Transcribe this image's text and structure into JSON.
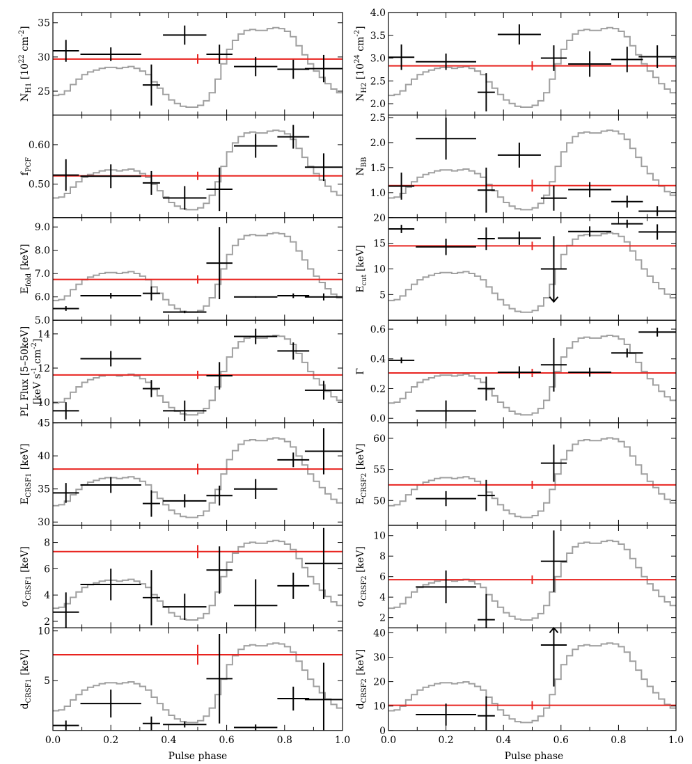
{
  "figure": {
    "xlabel": "Pulse phase",
    "x_ticks": [
      "0.0",
      "0.2",
      "0.4",
      "0.6",
      "0.8",
      "1.0"
    ]
  },
  "chart_data": [
    {
      "id": "NH1",
      "type": "scatter",
      "ylabel": "N_H1 [10^22 cm^-2]",
      "ylim": [
        21.5,
        36.5
      ],
      "yticks": [
        25,
        30,
        35
      ],
      "yticklabels": [
        "25",
        "30",
        "35"
      ],
      "mean": 29.7,
      "mean_err": 0.7,
      "points": [
        {
          "x": 0.045,
          "xerr": 0.045,
          "y": 30.9,
          "yerr": 1.6
        },
        {
          "x": 0.2,
          "xerr": 0.105,
          "y": 30.4,
          "yerr": 1.0
        },
        {
          "x": 0.34,
          "xerr": 0.03,
          "y": 25.9,
          "yerr": 3.0
        },
        {
          "x": 0.455,
          "xerr": 0.075,
          "y": 33.2,
          "yerr": 1.4
        },
        {
          "x": 0.575,
          "xerr": 0.045,
          "y": 30.4,
          "yerr": 1.4
        },
        {
          "x": 0.7,
          "xerr": 0.075,
          "y": 28.6,
          "yerr": 1.4
        },
        {
          "x": 0.83,
          "xerr": 0.055,
          "y": 28.2,
          "yerr": 1.4
        },
        {
          "x": 0.935,
          "xerr": 0.065,
          "y": 28.3,
          "yerr": 2.0
        }
      ]
    },
    {
      "id": "NH2",
      "type": "scatter",
      "ylabel": "N_H2 [10^24 cm^-2]",
      "ylim": [
        1.75,
        4.0
      ],
      "yticks": [
        2.0,
        2.5,
        3.0,
        3.5,
        4.0
      ],
      "yticklabels": [
        "2.0",
        "2.5",
        "3.0",
        "3.5",
        "4.0"
      ],
      "mean": 2.83,
      "mean_err": 0.1,
      "points": [
        {
          "x": 0.045,
          "xerr": 0.045,
          "y": 3.02,
          "yerr": 0.28
        },
        {
          "x": 0.2,
          "xerr": 0.105,
          "y": 2.92,
          "yerr": 0.18
        },
        {
          "x": 0.34,
          "xerr": 0.03,
          "y": 2.25,
          "yerr": 0.42
        },
        {
          "x": 0.455,
          "xerr": 0.075,
          "y": 3.52,
          "yerr": 0.22
        },
        {
          "x": 0.575,
          "xerr": 0.045,
          "y": 3.0,
          "yerr": 0.28
        },
        {
          "x": 0.7,
          "xerr": 0.075,
          "y": 2.87,
          "yerr": 0.28
        },
        {
          "x": 0.83,
          "xerr": 0.055,
          "y": 2.97,
          "yerr": 0.28
        },
        {
          "x": 0.935,
          "xerr": 0.065,
          "y": 3.03,
          "yerr": 0.25
        }
      ]
    },
    {
      "id": "fPCF",
      "type": "scatter",
      "ylabel": "f_PCF",
      "ylim": [
        0.415,
        0.675
      ],
      "yticks": [
        0.5,
        0.6
      ],
      "yticklabels": [
        "0.50",
        "0.60"
      ],
      "mean": 0.521,
      "mean_err": 0.004,
      "points": [
        {
          "x": 0.045,
          "xerr": 0.045,
          "y": 0.523,
          "yerr": 0.04
        },
        {
          "x": 0.2,
          "xerr": 0.105,
          "y": 0.52,
          "yerr": 0.03
        },
        {
          "x": 0.34,
          "xerr": 0.03,
          "y": 0.503,
          "yerr": 0.03
        },
        {
          "x": 0.455,
          "xerr": 0.075,
          "y": 0.465,
          "yerr": 0.03
        },
        {
          "x": 0.575,
          "xerr": 0.045,
          "y": 0.487,
          "yerr": 0.055
        },
        {
          "x": 0.7,
          "xerr": 0.075,
          "y": 0.597,
          "yerr": 0.03
        },
        {
          "x": 0.83,
          "xerr": 0.055,
          "y": 0.62,
          "yerr": 0.03
        },
        {
          "x": 0.935,
          "xerr": 0.065,
          "y": 0.543,
          "yerr": 0.035
        }
      ]
    },
    {
      "id": "NBB",
      "type": "scatter",
      "ylabel": "N_BB",
      "ylim": [
        0.5,
        2.55
      ],
      "yticks": [
        1.0,
        1.5,
        2.0,
        2.5
      ],
      "yticklabels": [
        "1.0",
        "1.5",
        "2.0",
        "2.5"
      ],
      "mean": 1.14,
      "mean_err": 0.12,
      "points": [
        {
          "x": 0.045,
          "xerr": 0.045,
          "y": 1.13,
          "yerr": 0.27
        },
        {
          "x": 0.2,
          "xerr": 0.105,
          "y": 2.08,
          "yerr": 0.42
        },
        {
          "x": 0.34,
          "xerr": 0.03,
          "y": 1.05,
          "yerr": 0.45
        },
        {
          "x": 0.455,
          "xerr": 0.075,
          "y": 1.75,
          "yerr": 0.25
        },
        {
          "x": 0.575,
          "xerr": 0.045,
          "y": 0.89,
          "yerr": 0.25
        },
        {
          "x": 0.7,
          "xerr": 0.075,
          "y": 1.06,
          "yerr": 0.15
        },
        {
          "x": 0.83,
          "xerr": 0.055,
          "y": 0.82,
          "yerr": 0.12
        },
        {
          "x": 0.935,
          "xerr": 0.065,
          "y": 0.63,
          "yerr": 0.1
        }
      ]
    },
    {
      "id": "Efold",
      "type": "scatter",
      "ylabel": "E_fold [keV]",
      "ylim": [
        5.0,
        9.4
      ],
      "yticks": [
        5,
        6,
        7,
        8,
        9
      ],
      "yticklabels": [
        "5.0",
        "6.0",
        "7.0",
        "8.0",
        "9.0"
      ],
      "mean": 6.75,
      "mean_err": 0.07,
      "points": [
        {
          "x": 0.045,
          "xerr": 0.045,
          "y": 5.5,
          "yerr": 0.1
        },
        {
          "x": 0.2,
          "xerr": 0.105,
          "y": 6.05,
          "yerr": 0.12
        },
        {
          "x": 0.34,
          "xerr": 0.03,
          "y": 6.15,
          "yerr": 0.3
        },
        {
          "x": 0.455,
          "xerr": 0.075,
          "y": 5.35,
          "yerr": 0.05
        },
        {
          "x": 0.575,
          "xerr": 0.045,
          "y": 7.45,
          "yerr": 1.55
        },
        {
          "x": 0.7,
          "xerr": 0.075,
          "y": 6.0,
          "yerr": 0.03
        },
        {
          "x": 0.83,
          "xerr": 0.055,
          "y": 6.05,
          "yerr": 0.1
        },
        {
          "x": 0.935,
          "xerr": 0.065,
          "y": 6.0,
          "yerr": 0.15
        }
      ]
    },
    {
      "id": "Ecut",
      "type": "scatter",
      "ylabel": "E_cut [keV]",
      "ylim": [
        0.0,
        20.0
      ],
      "yticks": [
        5,
        10,
        15,
        20
      ],
      "yticklabels": [
        "5",
        "10",
        "15",
        "20"
      ],
      "mean": 14.5,
      "mean_err": 0.4,
      "points": [
        {
          "x": 0.045,
          "xerr": 0.045,
          "y": 17.8,
          "yerr": 0.8
        },
        {
          "x": 0.2,
          "xerr": 0.105,
          "y": 14.3,
          "yerr": 1.6
        },
        {
          "x": 0.34,
          "xerr": 0.03,
          "y": 15.9,
          "yerr": 2.2
        },
        {
          "x": 0.455,
          "xerr": 0.075,
          "y": 16.0,
          "yerr": 1.3
        },
        {
          "x": 0.575,
          "xerr": 0.045,
          "y": 10.0,
          "yerr": 6.4,
          "lower_limit_arrow": true
        },
        {
          "x": 0.7,
          "xerr": 0.075,
          "y": 17.3,
          "yerr": 1.0
        },
        {
          "x": 0.83,
          "xerr": 0.055,
          "y": 18.8,
          "yerr": 0.8
        },
        {
          "x": 0.935,
          "xerr": 0.065,
          "y": 17.2,
          "yerr": 1.5
        }
      ]
    },
    {
      "id": "PLflux",
      "type": "scatter",
      "ylabel": "PL Flux [5–50keV]",
      "ylabel2": "[keV s^-1 cm^-2]",
      "ylim": [
        8.8,
        14.8
      ],
      "yticks": [
        10,
        12,
        14
      ],
      "yticklabels": [
        "10",
        "12",
        "14"
      ],
      "mean": 11.6,
      "mean_err": 0.15,
      "points": [
        {
          "x": 0.045,
          "xerr": 0.045,
          "y": 9.5,
          "yerr": 0.5
        },
        {
          "x": 0.2,
          "xerr": 0.105,
          "y": 12.55,
          "yerr": 0.45
        },
        {
          "x": 0.34,
          "xerr": 0.03,
          "y": 10.8,
          "yerr": 0.5
        },
        {
          "x": 0.455,
          "xerr": 0.075,
          "y": 9.5,
          "yerr": 0.6
        },
        {
          "x": 0.575,
          "xerr": 0.045,
          "y": 11.55,
          "yerr": 0.8
        },
        {
          "x": 0.7,
          "xerr": 0.075,
          "y": 13.85,
          "yerr": 0.45
        },
        {
          "x": 0.83,
          "xerr": 0.055,
          "y": 13.0,
          "yerr": 0.5
        },
        {
          "x": 0.935,
          "xerr": 0.065,
          "y": 10.7,
          "yerr": 0.55
        }
      ]
    },
    {
      "id": "Gamma",
      "type": "scatter",
      "ylabel": "Γ",
      "ylim": [
        -0.03,
        0.66
      ],
      "yticks": [
        0.0,
        0.2,
        0.4,
        0.6
      ],
      "yticklabels": [
        "0.0",
        "0.2",
        "0.4",
        "0.6"
      ],
      "mean": 0.305,
      "mean_err": 0.01,
      "points": [
        {
          "x": 0.045,
          "xerr": 0.045,
          "y": 0.39,
          "yerr": 0.02
        },
        {
          "x": 0.2,
          "xerr": 0.105,
          "y": 0.05,
          "yerr": 0.07
        },
        {
          "x": 0.34,
          "xerr": 0.03,
          "y": 0.2,
          "yerr": 0.08
        },
        {
          "x": 0.455,
          "xerr": 0.075,
          "y": 0.31,
          "yerr": 0.04
        },
        {
          "x": 0.575,
          "xerr": 0.045,
          "y": 0.36,
          "yerr": 0.18
        },
        {
          "x": 0.7,
          "xerr": 0.075,
          "y": 0.31,
          "yerr": 0.03
        },
        {
          "x": 0.83,
          "xerr": 0.055,
          "y": 0.44,
          "yerr": 0.03
        },
        {
          "x": 0.935,
          "xerr": 0.065,
          "y": 0.58,
          "yerr": 0.03
        }
      ]
    },
    {
      "id": "ECRSF1",
      "type": "scatter",
      "ylabel": "E_CRSF1 [keV]",
      "ylim": [
        29.5,
        45.0
      ],
      "yticks": [
        30,
        35,
        40,
        45
      ],
      "yticklabels": [
        "30",
        "35",
        "40",
        "45"
      ],
      "mean": 38.0,
      "mean_err": 0.8,
      "points": [
        {
          "x": 0.045,
          "xerr": 0.045,
          "y": 34.4,
          "yerr": 1.5
        },
        {
          "x": 0.2,
          "xerr": 0.105,
          "y": 35.6,
          "yerr": 1.2
        },
        {
          "x": 0.34,
          "xerr": 0.03,
          "y": 32.8,
          "yerr": 2.0
        },
        {
          "x": 0.455,
          "xerr": 0.075,
          "y": 33.2,
          "yerr": 1.0
        },
        {
          "x": 0.575,
          "xerr": 0.045,
          "y": 34.0,
          "yerr": 1.5
        },
        {
          "x": 0.7,
          "xerr": 0.075,
          "y": 35.0,
          "yerr": 1.5
        },
        {
          "x": 0.83,
          "xerr": 0.055,
          "y": 39.4,
          "yerr": 1.1
        },
        {
          "x": 0.935,
          "xerr": 0.065,
          "y": 40.7,
          "yerr": 3.5
        }
      ]
    },
    {
      "id": "ECRSF2",
      "type": "scatter",
      "ylabel": "E_CRSF2 [keV]",
      "ylim": [
        46.0,
        62.5
      ],
      "yticks": [
        50,
        55,
        60
      ],
      "yticklabels": [
        "50",
        "55",
        "60"
      ],
      "mean": 52.5,
      "mean_err": 0.6,
      "points": [
        {
          "x": 0.2,
          "xerr": 0.105,
          "y": 50.3,
          "yerr": 1.2
        },
        {
          "x": 0.34,
          "xerr": 0.03,
          "y": 50.8,
          "yerr": 2.5
        },
        {
          "x": 0.575,
          "xerr": 0.045,
          "y": 56.0,
          "yerr": 3.0
        }
      ]
    },
    {
      "id": "sigCRSF1",
      "type": "scatter",
      "ylabel": "σ_CRSF1 [keV]",
      "ylim": [
        1.5,
        9.3
      ],
      "yticks": [
        2,
        4,
        6,
        8
      ],
      "yticklabels": [
        "2",
        "4",
        "6",
        "8"
      ],
      "mean": 7.3,
      "mean_err": 0.5,
      "points": [
        {
          "x": 0.045,
          "xerr": 0.045,
          "y": 2.7,
          "yerr": 1.5
        },
        {
          "x": 0.2,
          "xerr": 0.105,
          "y": 4.8,
          "yerr": 1.2
        },
        {
          "x": 0.34,
          "xerr": 0.03,
          "y": 3.8,
          "yerr": 2.1
        },
        {
          "x": 0.455,
          "xerr": 0.075,
          "y": 3.1,
          "yerr": 1.0
        },
        {
          "x": 0.575,
          "xerr": 0.045,
          "y": 5.9,
          "yerr": 1.8
        },
        {
          "x": 0.7,
          "xerr": 0.075,
          "y": 3.2,
          "yerr": 2.0
        },
        {
          "x": 0.83,
          "xerr": 0.055,
          "y": 4.7,
          "yerr": 1.0
        },
        {
          "x": 0.935,
          "xerr": 0.065,
          "y": 6.4,
          "yerr": 2.7
        }
      ]
    },
    {
      "id": "sigCRSF2",
      "type": "scatter",
      "ylabel": "σ_CRSF2 [keV]",
      "ylim": [
        1.0,
        11.0
      ],
      "yticks": [
        2,
        4,
        6,
        8,
        10
      ],
      "yticklabels": [
        "2",
        "4",
        "6",
        "8",
        "10"
      ],
      "mean": 5.7,
      "mean_err": 0.4,
      "points": [
        {
          "x": 0.2,
          "xerr": 0.105,
          "y": 5.0,
          "yerr": 1.6
        },
        {
          "x": 0.34,
          "xerr": 0.03,
          "y": 1.8,
          "yerr": 2.5
        },
        {
          "x": 0.575,
          "xerr": 0.045,
          "y": 7.5,
          "yerr": 3.0
        }
      ]
    },
    {
      "id": "dCRSF1",
      "type": "scatter",
      "ylabel": "d_CRSF1 [keV]",
      "ylim": [
        0.0,
        10.3
      ],
      "yticks": [
        5,
        10
      ],
      "yticklabels": [
        "5",
        "10"
      ],
      "mean": 7.6,
      "mean_err": 1.0,
      "points": [
        {
          "x": 0.045,
          "xerr": 0.045,
          "y": 0.5,
          "yerr": 0.5
        },
        {
          "x": 0.2,
          "xerr": 0.105,
          "y": 2.7,
          "yerr": 1.4
        },
        {
          "x": 0.34,
          "xerr": 0.03,
          "y": 0.7,
          "yerr": 0.7
        },
        {
          "x": 0.455,
          "xerr": 0.075,
          "y": 0.6,
          "yerr": 0.3
        },
        {
          "x": 0.575,
          "xerr": 0.045,
          "y": 5.2,
          "yerr": 4.5
        },
        {
          "x": 0.7,
          "xerr": 0.075,
          "y": 0.3,
          "yerr": 0.3
        },
        {
          "x": 0.83,
          "xerr": 0.055,
          "y": 3.2,
          "yerr": 1.2
        },
        {
          "x": 0.935,
          "xerr": 0.065,
          "y": 3.1,
          "yerr": 3.7
        }
      ]
    },
    {
      "id": "dCRSF2",
      "type": "scatter",
      "ylabel": "d_CRSF2 [keV]",
      "ylim": [
        0.0,
        42.0
      ],
      "yticks": [
        0,
        10,
        20,
        30,
        40
      ],
      "yticklabels": [
        "0",
        "10",
        "20",
        "30",
        "40"
      ],
      "mean": 10.3,
      "mean_err": 1.5,
      "points": [
        {
          "x": 0.2,
          "xerr": 0.105,
          "y": 6.5,
          "yerr": 4.5
        },
        {
          "x": 0.34,
          "xerr": 0.03,
          "y": 6.0,
          "yerr": 8.0
        },
        {
          "x": 0.575,
          "xerr": 0.045,
          "y": 35.0,
          "yerr": 17.0,
          "lower_limit_arrow": true
        }
      ]
    }
  ],
  "pulse_profile": {
    "description_color": "#a0a0a0",
    "phase": [
      0.0,
      0.02,
      0.04,
      0.06,
      0.08,
      0.1,
      0.12,
      0.14,
      0.16,
      0.18,
      0.2,
      0.22,
      0.24,
      0.26,
      0.28,
      0.3,
      0.32,
      0.34,
      0.36,
      0.38,
      0.4,
      0.42,
      0.44,
      0.46,
      0.48,
      0.5,
      0.52,
      0.54,
      0.56,
      0.58,
      0.6,
      0.62,
      0.64,
      0.66,
      0.68,
      0.7,
      0.72,
      0.74,
      0.76,
      0.78,
      0.8,
      0.82,
      0.84,
      0.86,
      0.88,
      0.9,
      0.92,
      0.94,
      0.96,
      0.98
    ],
    "level": [
      0.15,
      0.16,
      0.2,
      0.27,
      0.33,
      0.38,
      0.41,
      0.43,
      0.45,
      0.46,
      0.46,
      0.45,
      0.46,
      0.47,
      0.45,
      0.42,
      0.38,
      0.3,
      0.23,
      0.16,
      0.1,
      0.06,
      0.03,
      0.02,
      0.02,
      0.04,
      0.09,
      0.18,
      0.33,
      0.5,
      0.66,
      0.76,
      0.83,
      0.87,
      0.88,
      0.87,
      0.87,
      0.89,
      0.9,
      0.89,
      0.86,
      0.8,
      0.7,
      0.6,
      0.5,
      0.42,
      0.35,
      0.28,
      0.22,
      0.18
    ]
  },
  "colors": {
    "data": "#000000",
    "mean": "#e8231f",
    "profile": "#a0a0a0"
  }
}
